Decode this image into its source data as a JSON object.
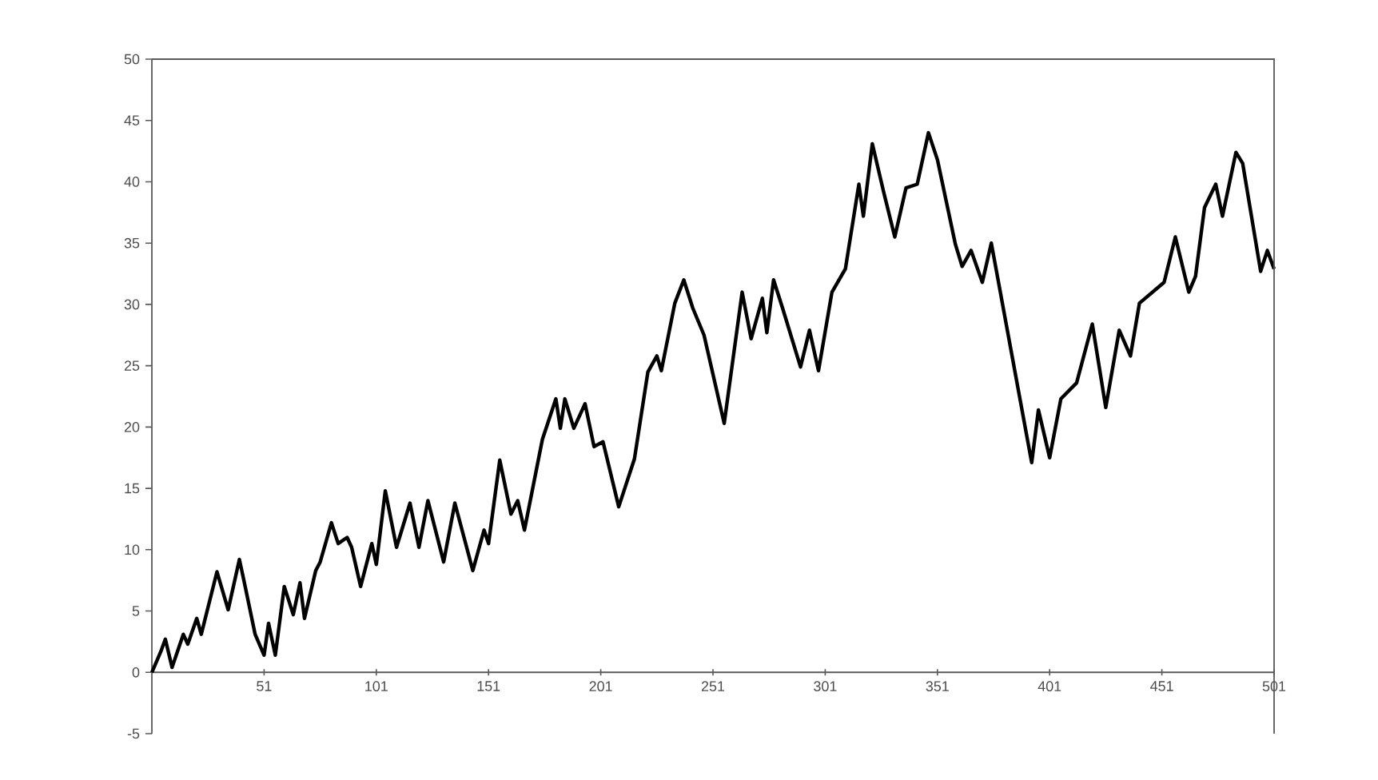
{
  "chart_data": {
    "type": "line",
    "xlim": [
      1,
      501
    ],
    "xticks": [
      {
        "value": 1,
        "label": null
      },
      51,
      101,
      151,
      201,
      251,
      301,
      351,
      401,
      451,
      501
    ],
    "ylim": [
      -5,
      50
    ],
    "yticks": [
      -5,
      0,
      5,
      10,
      15,
      20,
      25,
      30,
      35,
      40,
      45,
      50
    ],
    "grid": false,
    "legend": false,
    "marker": "none",
    "line_style": "solid",
    "series": [
      {
        "color": "#000000",
        "x": [
          1,
          5,
          7,
          10,
          15,
          17,
          21,
          23,
          30,
          35,
          40,
          42,
          47,
          51,
          53,
          56,
          60,
          64,
          67,
          69,
          74,
          76,
          81,
          84,
          88,
          90,
          94,
          99,
          101,
          105,
          110,
          116,
          120,
          124,
          131,
          136,
          144,
          149,
          151,
          156,
          161,
          164,
          167,
          175,
          181,
          183,
          185,
          189,
          194,
          198,
          202,
          209,
          216,
          222,
          226,
          228,
          234,
          238,
          242,
          247,
          256,
          264,
          268,
          273,
          275,
          278,
          282,
          290,
          294,
          298,
          304,
          310,
          316,
          318,
          322,
          327,
          332,
          337,
          342,
          347,
          351,
          359,
          362,
          366,
          371,
          375,
          393,
          396,
          401,
          406,
          413,
          420,
          426,
          432,
          437,
          441,
          452,
          457,
          463,
          466,
          470,
          475,
          478,
          484,
          487,
          495,
          498,
          501
        ],
        "values": [
          0,
          1.7,
          2.7,
          0.4,
          3.1,
          2.3,
          4.4,
          3.1,
          8.2,
          5.1,
          9.2,
          7.5,
          3.1,
          1.4,
          4.0,
          1.4,
          7.0,
          4.7,
          7.3,
          4.4,
          8.3,
          9.0,
          12.2,
          10.5,
          11.0,
          10.2,
          7.0,
          10.5,
          8.8,
          14.8,
          10.2,
          13.8,
          10.2,
          14.0,
          9.0,
          13.8,
          8.3,
          11.6,
          10.5,
          17.3,
          12.9,
          14.0,
          11.6,
          19.0,
          22.3,
          19.9,
          22.3,
          19.9,
          21.9,
          18.4,
          18.8,
          13.5,
          17.4,
          24.5,
          25.8,
          24.6,
          30.1,
          32.0,
          29.7,
          27.5,
          20.3,
          31.0,
          27.2,
          30.5,
          27.7,
          32.0,
          29.7,
          24.9,
          27.9,
          24.6,
          31.0,
          32.9,
          39.8,
          37.2,
          43.1,
          39.2,
          35.5,
          39.5,
          39.8,
          44.0,
          41.8,
          34.9,
          33.1,
          34.4,
          31.8,
          35.0,
          17.1,
          21.4,
          17.5,
          22.3,
          23.6,
          28.4,
          21.6,
          27.9,
          25.8,
          30.1,
          31.8,
          35.5,
          31.0,
          32.3,
          37.9,
          39.8,
          37.2,
          42.4,
          41.5,
          32.7,
          34.4,
          32.9
        ]
      }
    ]
  }
}
